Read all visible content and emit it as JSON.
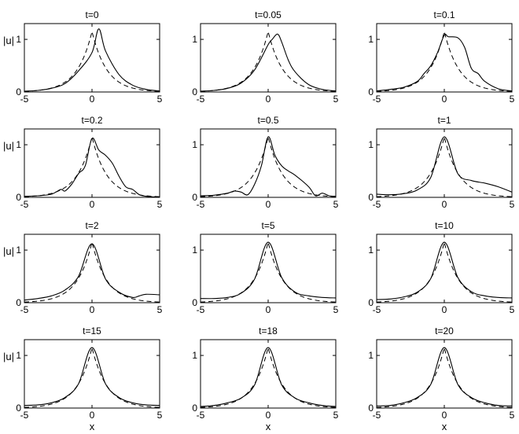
{
  "chart_data": {
    "type": "line",
    "layout": {
      "rows": 4,
      "cols": 3
    },
    "xlim": [
      -5,
      5
    ],
    "ylim": [
      0,
      1.3
    ],
    "xticks": [
      -5,
      0,
      5
    ],
    "yticks": [
      0,
      1
    ],
    "xlabel": "x",
    "ylabel": "|u|",
    "series_styles": {
      "solid": "#000000",
      "dashed": "#000000"
    },
    "reference_peak": 1.15,
    "reference_width": 1.1,
    "panels": [
      {
        "title": "t=0",
        "solid": [
          [
            -5,
            0.015
          ],
          [
            -4,
            0.03
          ],
          [
            -3,
            0.07
          ],
          [
            -2,
            0.16
          ],
          [
            -1,
            0.4
          ],
          [
            0,
            0.75
          ],
          [
            0.5,
            1.2
          ],
          [
            1,
            0.78
          ],
          [
            2,
            0.33
          ],
          [
            3,
            0.13
          ],
          [
            4,
            0.05
          ],
          [
            5,
            0.02
          ]
        ]
      },
      {
        "title": "t=0.05",
        "solid": [
          [
            -5,
            0.015
          ],
          [
            -4,
            0.03
          ],
          [
            -3,
            0.07
          ],
          [
            -2,
            0.17
          ],
          [
            -1,
            0.42
          ],
          [
            0,
            0.9
          ],
          [
            0.3,
            1.0
          ],
          [
            0.7,
            1.1
          ],
          [
            1,
            0.95
          ],
          [
            1.5,
            0.6
          ],
          [
            2,
            0.38
          ],
          [
            3,
            0.14
          ],
          [
            4,
            0.05
          ],
          [
            5,
            0.02
          ]
        ]
      },
      {
        "title": "t=0.1",
        "solid": [
          [
            -5,
            0.02
          ],
          [
            -4,
            0.05
          ],
          [
            -3,
            0.09
          ],
          [
            -2,
            0.2
          ],
          [
            -1.5,
            0.35
          ],
          [
            -1,
            0.5
          ],
          [
            -0.5,
            0.75
          ],
          [
            0,
            1.08
          ],
          [
            0.3,
            1.05
          ],
          [
            1,
            1.03
          ],
          [
            1.5,
            0.85
          ],
          [
            2,
            0.45
          ],
          [
            2.5,
            0.35
          ],
          [
            3,
            0.2
          ],
          [
            4,
            0.06
          ],
          [
            5,
            0.02
          ]
        ]
      },
      {
        "title": "t=0.2",
        "solid": [
          [
            -5,
            0.02
          ],
          [
            -4,
            0.03
          ],
          [
            -3,
            0.06
          ],
          [
            -2.3,
            0.15
          ],
          [
            -2,
            0.12
          ],
          [
            -1.5,
            0.25
          ],
          [
            -1,
            0.45
          ],
          [
            -0.5,
            0.6
          ],
          [
            0,
            1.12
          ],
          [
            0.5,
            0.9
          ],
          [
            1,
            0.8
          ],
          [
            1.5,
            0.65
          ],
          [
            2,
            0.4
          ],
          [
            2.5,
            0.2
          ],
          [
            3,
            0.15
          ],
          [
            3.5,
            0.05
          ],
          [
            4,
            0.02
          ],
          [
            5,
            0.0
          ]
        ]
      },
      {
        "title": "t=0.5",
        "solid": [
          [
            -5,
            0.03
          ],
          [
            -4,
            0.04
          ],
          [
            -3,
            0.08
          ],
          [
            -2.5,
            0.12
          ],
          [
            -2,
            0.1
          ],
          [
            -1.5,
            0.05
          ],
          [
            -1,
            0.25
          ],
          [
            -0.5,
            0.6
          ],
          [
            0,
            1.15
          ],
          [
            0.5,
            0.8
          ],
          [
            1,
            0.6
          ],
          [
            1.5,
            0.5
          ],
          [
            2,
            0.42
          ],
          [
            3,
            0.2
          ],
          [
            3.5,
            0.03
          ],
          [
            4,
            0.08
          ],
          [
            4.5,
            0.03
          ],
          [
            5,
            0.02
          ]
        ]
      },
      {
        "title": "t=1",
        "solid": [
          [
            -5,
            0.06
          ],
          [
            -4,
            0.05
          ],
          [
            -3,
            0.07
          ],
          [
            -2,
            0.14
          ],
          [
            -1,
            0.38
          ],
          [
            0,
            1.15
          ],
          [
            1,
            0.45
          ],
          [
            2,
            0.32
          ],
          [
            3,
            0.27
          ],
          [
            4,
            0.2
          ],
          [
            5,
            0.1
          ]
        ]
      },
      {
        "title": "t=2",
        "solid": [
          [
            -5,
            0.05
          ],
          [
            -4,
            0.08
          ],
          [
            -3,
            0.13
          ],
          [
            -2,
            0.24
          ],
          [
            -1,
            0.5
          ],
          [
            0,
            1.12
          ],
          [
            1,
            0.45
          ],
          [
            2,
            0.2
          ],
          [
            3,
            0.1
          ],
          [
            3.5,
            0.13
          ],
          [
            4,
            0.16
          ],
          [
            5,
            0.15
          ]
        ]
      },
      {
        "title": "t=5",
        "solid": [
          [
            -5,
            0.08
          ],
          [
            -4,
            0.08
          ],
          [
            -3,
            0.1
          ],
          [
            -2,
            0.18
          ],
          [
            -1,
            0.45
          ],
          [
            0,
            1.15
          ],
          [
            1,
            0.48
          ],
          [
            2,
            0.2
          ],
          [
            3,
            0.13
          ],
          [
            4,
            0.1
          ],
          [
            5,
            0.09
          ]
        ]
      },
      {
        "title": "t=10",
        "solid": [
          [
            -5,
            0.06
          ],
          [
            -4,
            0.07
          ],
          [
            -3,
            0.11
          ],
          [
            -2,
            0.2
          ],
          [
            -1,
            0.46
          ],
          [
            0,
            1.15
          ],
          [
            1,
            0.48
          ],
          [
            2,
            0.21
          ],
          [
            3,
            0.13
          ],
          [
            4,
            0.1
          ],
          [
            5,
            0.09
          ]
        ]
      },
      {
        "title": "t=15",
        "solid": [
          [
            -5,
            0.05
          ],
          [
            -4,
            0.06
          ],
          [
            -3,
            0.1
          ],
          [
            -2,
            0.2
          ],
          [
            -1,
            0.46
          ],
          [
            0,
            1.15
          ],
          [
            1,
            0.46
          ],
          [
            2,
            0.2
          ],
          [
            3,
            0.1
          ],
          [
            4,
            0.06
          ],
          [
            5,
            0.05
          ]
        ]
      },
      {
        "title": "t=18",
        "solid": [
          [
            -5,
            0.03
          ],
          [
            -4,
            0.05
          ],
          [
            -3,
            0.1
          ],
          [
            -2,
            0.19
          ],
          [
            -1,
            0.44
          ],
          [
            0,
            1.15
          ],
          [
            1,
            0.44
          ],
          [
            2,
            0.19
          ],
          [
            3,
            0.1
          ],
          [
            4,
            0.05
          ],
          [
            5,
            0.03
          ]
        ]
      },
      {
        "title": "t=20",
        "solid": [
          [
            -5,
            0.04
          ],
          [
            -4,
            0.05
          ],
          [
            -3,
            0.1
          ],
          [
            -2,
            0.2
          ],
          [
            -1,
            0.45
          ],
          [
            0,
            1.15
          ],
          [
            1,
            0.45
          ],
          [
            2,
            0.2
          ],
          [
            3,
            0.1
          ],
          [
            4,
            0.05
          ],
          [
            5,
            0.04
          ]
        ]
      }
    ]
  }
}
